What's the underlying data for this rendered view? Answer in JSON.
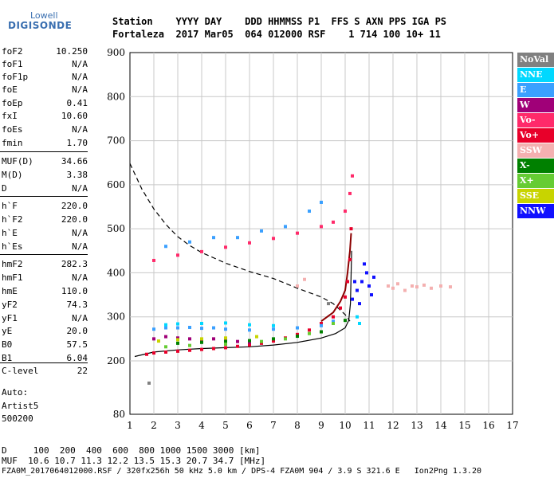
{
  "logo": {
    "line1": "Lowell",
    "line2": "DIGISONDE"
  },
  "header": {
    "line1": "Station    YYYY DAY    DDD HHMMSS P1  FFS S AXN PPS IGA PS",
    "line2": "Fortaleza  2017 Mar05  064 012000 RSF    1 714 100 10+ 11"
  },
  "params": [
    {
      "name": "foF2",
      "value": "10.250"
    },
    {
      "name": "foF1",
      "value": "N/A"
    },
    {
      "name": "foF1p",
      "value": "N/A"
    },
    {
      "name": "foE",
      "value": "N/A"
    },
    {
      "name": "foEp",
      "value": "0.41"
    },
    {
      "name": "fxI",
      "value": "10.60"
    },
    {
      "name": "foEs",
      "value": "N/A"
    },
    {
      "name": "fmin",
      "value": "1.70"
    },
    {
      "name": "MUF(D)",
      "value": "34.66"
    },
    {
      "name": "M(D)",
      "value": "3.38"
    },
    {
      "name": "D",
      "value": "N/A"
    },
    {
      "name": "h`F",
      "value": "220.0"
    },
    {
      "name": "h`F2",
      "value": "220.0"
    },
    {
      "name": "h`E",
      "value": "N/A"
    },
    {
      "name": "h`Es",
      "value": "N/A"
    },
    {
      "name": "hmF2",
      "value": "282.3"
    },
    {
      "name": "hmF1",
      "value": "N/A"
    },
    {
      "name": "hmE",
      "value": "110.0"
    },
    {
      "name": "yF2",
      "value": "74.3"
    },
    {
      "name": "yF1",
      "value": "N/A"
    },
    {
      "name": "yE",
      "value": "20.0"
    },
    {
      "name": "B0",
      "value": "57.5"
    },
    {
      "name": "B1",
      "value": "6.04"
    },
    {
      "name": "C-level",
      "value": "22"
    }
  ],
  "notes": {
    "auto": "Auto:",
    "artist": "Artist5",
    "version": "500200"
  },
  "legend": [
    {
      "label": "NoVal",
      "color": "#808080"
    },
    {
      "label": "NNE",
      "color": "#00d8ff"
    },
    {
      "label": "E",
      "color": "#3aa0ff"
    },
    {
      "label": "W",
      "color": "#a00078"
    },
    {
      "label": "Vo-",
      "color": "#ff2a6a"
    },
    {
      "label": "Vo+",
      "color": "#e8002a"
    },
    {
      "label": "SSW",
      "color": "#f4b0b0"
    },
    {
      "label": "X-",
      "color": "#008000"
    },
    {
      "label": "X+",
      "color": "#66cc33"
    },
    {
      "label": "SSE",
      "color": "#c8d400"
    },
    {
      "label": "NNW",
      "color": "#1010ff"
    }
  ],
  "bottom": {
    "line1": "D     100  200  400  600  800 1000 1500 3000 [km]",
    "line2": "MUF  10.6 10.7 11.3 12.2 13.5 15.3 20.7 34.7 [MHz]",
    "line3": "FZA0M_2017064012000.RSF / 320fx256h 50 kHz 5.0 km / DPS-4 FZA0M 904 / 3.9 S 321.6 E   Ion2Png 1.3.20"
  },
  "chart_data": {
    "type": "scatter",
    "xlim": [
      1,
      17
    ],
    "ylim": [
      80,
      900
    ],
    "x_ticks": [
      1,
      2,
      3,
      4,
      5,
      6,
      7,
      8,
      9,
      10,
      11,
      12,
      13,
      14,
      15,
      16,
      17
    ],
    "y_ticks": [
      80,
      200,
      300,
      400,
      500,
      600,
      700,
      800,
      900
    ],
    "grid": true,
    "legend_position": "right",
    "series": [
      {
        "name": "Vo+",
        "color": "#e8002a",
        "values": [
          [
            1.7,
            215
          ],
          [
            2,
            218
          ],
          [
            2.5,
            220
          ],
          [
            3,
            222
          ],
          [
            3.5,
            224
          ],
          [
            4,
            226
          ],
          [
            4.5,
            228
          ],
          [
            5,
            230
          ],
          [
            5.5,
            233
          ],
          [
            6,
            236
          ],
          [
            6.5,
            240
          ],
          [
            7,
            245
          ],
          [
            7.5,
            252
          ],
          [
            8,
            260
          ],
          [
            8.5,
            270
          ],
          [
            9,
            285
          ],
          [
            9.5,
            300
          ],
          [
            9.8,
            320
          ],
          [
            10,
            345
          ],
          [
            10.1,
            380
          ],
          [
            10.2,
            430
          ],
          [
            10.25,
            500
          ]
        ]
      },
      {
        "name": "Vo-",
        "color": "#ff2a6a",
        "values": [
          [
            2,
            428
          ],
          [
            3,
            440
          ],
          [
            4,
            448
          ],
          [
            5,
            458
          ],
          [
            6,
            468
          ],
          [
            7,
            478
          ],
          [
            8,
            490
          ],
          [
            9,
            505
          ],
          [
            9.5,
            515
          ],
          [
            10,
            540
          ],
          [
            10.2,
            580
          ],
          [
            10.3,
            620
          ]
        ]
      },
      {
        "name": "W",
        "color": "#a00078",
        "values": [
          [
            2,
            250
          ],
          [
            2.5,
            255
          ],
          [
            3,
            252
          ],
          [
            3.5,
            250
          ],
          [
            4,
            248
          ],
          [
            4.5,
            250
          ],
          [
            5,
            245
          ],
          [
            5.5,
            244
          ],
          [
            6,
            242
          ]
        ]
      },
      {
        "name": "E",
        "color": "#3aa0ff",
        "values": [
          [
            2,
            272
          ],
          [
            2.5,
            275
          ],
          [
            3,
            275
          ],
          [
            3.5,
            276
          ],
          [
            4,
            274
          ],
          [
            4.5,
            275
          ],
          [
            5,
            272
          ],
          [
            6,
            270
          ],
          [
            7,
            272
          ],
          [
            8,
            275
          ],
          [
            9,
            280
          ],
          [
            9.5,
            290
          ],
          [
            2.5,
            460
          ],
          [
            3.5,
            470
          ],
          [
            4.5,
            480
          ],
          [
            5.5,
            480
          ],
          [
            6.5,
            495
          ],
          [
            7.5,
            505
          ],
          [
            8.5,
            540
          ],
          [
            9,
            560
          ]
        ]
      },
      {
        "name": "NNE",
        "color": "#00d8ff",
        "values": [
          [
            2.5,
            282
          ],
          [
            3,
            284
          ],
          [
            4,
            285
          ],
          [
            5,
            286
          ],
          [
            6,
            282
          ],
          [
            7,
            280
          ],
          [
            10.5,
            300
          ],
          [
            10.6,
            285
          ]
        ]
      },
      {
        "name": "X-",
        "color": "#008000",
        "values": [
          [
            3,
            240
          ],
          [
            4,
            242
          ],
          [
            5,
            244
          ],
          [
            6,
            246
          ],
          [
            7,
            250
          ],
          [
            8,
            256
          ],
          [
            9,
            266
          ],
          [
            10,
            292
          ]
        ]
      },
      {
        "name": "X+",
        "color": "#66cc33",
        "values": [
          [
            2.5,
            232
          ],
          [
            3.5,
            235
          ],
          [
            5,
            238
          ],
          [
            6.5,
            244
          ],
          [
            7.5,
            250
          ],
          [
            8.5,
            262
          ],
          [
            9.5,
            285
          ]
        ]
      },
      {
        "name": "SSE",
        "color": "#c8d400",
        "values": [
          [
            2.2,
            245
          ],
          [
            3,
            248
          ],
          [
            4,
            250
          ],
          [
            5,
            252
          ],
          [
            6.3,
            255
          ]
        ]
      },
      {
        "name": "NNW",
        "color": "#1010ff",
        "values": [
          [
            10.3,
            340
          ],
          [
            10.5,
            360
          ],
          [
            10.7,
            380
          ],
          [
            10.9,
            400
          ],
          [
            11,
            370
          ],
          [
            11.1,
            350
          ],
          [
            10.6,
            330
          ],
          [
            10.8,
            420
          ],
          [
            11.2,
            390
          ],
          [
            10.4,
            380
          ]
        ]
      },
      {
        "name": "SSW",
        "color": "#f4b0b0",
        "values": [
          [
            11.8,
            370
          ],
          [
            12,
            365
          ],
          [
            12.2,
            375
          ],
          [
            12.5,
            360
          ],
          [
            12.8,
            370
          ],
          [
            13,
            368
          ],
          [
            13.3,
            372
          ],
          [
            13.6,
            365
          ],
          [
            14,
            370
          ],
          [
            14.4,
            368
          ],
          [
            8,
            370
          ],
          [
            8.3,
            385
          ]
        ]
      },
      {
        "name": "NoVal",
        "color": "#808080",
        "values": [
          [
            1.8,
            150
          ],
          [
            9.3,
            330
          ]
        ]
      }
    ],
    "traces": [
      {
        "style": "solid",
        "color": "#000000",
        "values": [
          [
            1.2,
            210
          ],
          [
            2,
            220
          ],
          [
            3,
            225
          ],
          [
            4,
            228
          ],
          [
            5,
            230
          ],
          [
            6,
            232
          ],
          [
            7,
            236
          ],
          [
            8,
            242
          ],
          [
            9,
            252
          ],
          [
            9.6,
            262
          ],
          [
            10,
            275
          ],
          [
            10.15,
            292
          ],
          [
            10.22,
            330
          ],
          [
            10.25,
            400
          ],
          [
            10.27,
            450
          ]
        ]
      },
      {
        "style": "dashed",
        "color": "#000000",
        "values": [
          [
            1,
            648
          ],
          [
            1.5,
            590
          ],
          [
            2,
            545
          ],
          [
            2.5,
            510
          ],
          [
            3,
            482
          ],
          [
            3.5,
            462
          ],
          [
            4,
            446
          ],
          [
            5,
            422
          ],
          [
            6,
            403
          ],
          [
            7,
            387
          ],
          [
            8,
            365
          ],
          [
            9,
            345
          ],
          [
            9.5,
            330
          ],
          [
            10,
            305
          ],
          [
            10.2,
            290
          ]
        ]
      },
      {
        "style": "solid",
        "color": "#8b0000",
        "values": [
          [
            9,
            290
          ],
          [
            9.5,
            310
          ],
          [
            9.8,
            335
          ],
          [
            10,
            360
          ],
          [
            10.1,
            400
          ],
          [
            10.2,
            450
          ],
          [
            10.25,
            490
          ]
        ]
      }
    ]
  }
}
